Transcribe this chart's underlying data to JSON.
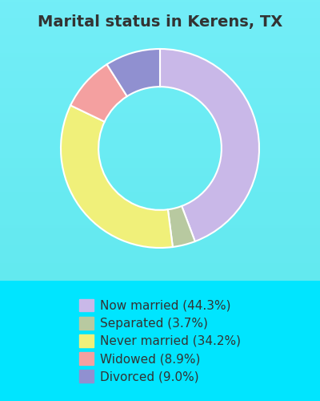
{
  "title": "Marital status in Kerens, TX",
  "slices": [
    {
      "label": "Now married (44.3%)",
      "value": 44.3,
      "color": "#c9b8e8"
    },
    {
      "label": "Separated (3.7%)",
      "value": 3.7,
      "color": "#b8c9a0"
    },
    {
      "label": "Never married (34.2%)",
      "value": 34.2,
      "color": "#f0f07a"
    },
    {
      "label": "Widowed (8.9%)",
      "value": 8.9,
      "color": "#f4a0a0"
    },
    {
      "label": "Divorced (9.0%)",
      "value": 9.0,
      "color": "#9090d0"
    }
  ],
  "bg_outer": "#00e5ff",
  "bg_chart": [
    "#e8f5e9",
    "#d0f0e8"
  ],
  "title_color": "#333333",
  "title_fontsize": 14,
  "legend_fontsize": 11,
  "donut_width": 0.38,
  "start_angle": 90
}
